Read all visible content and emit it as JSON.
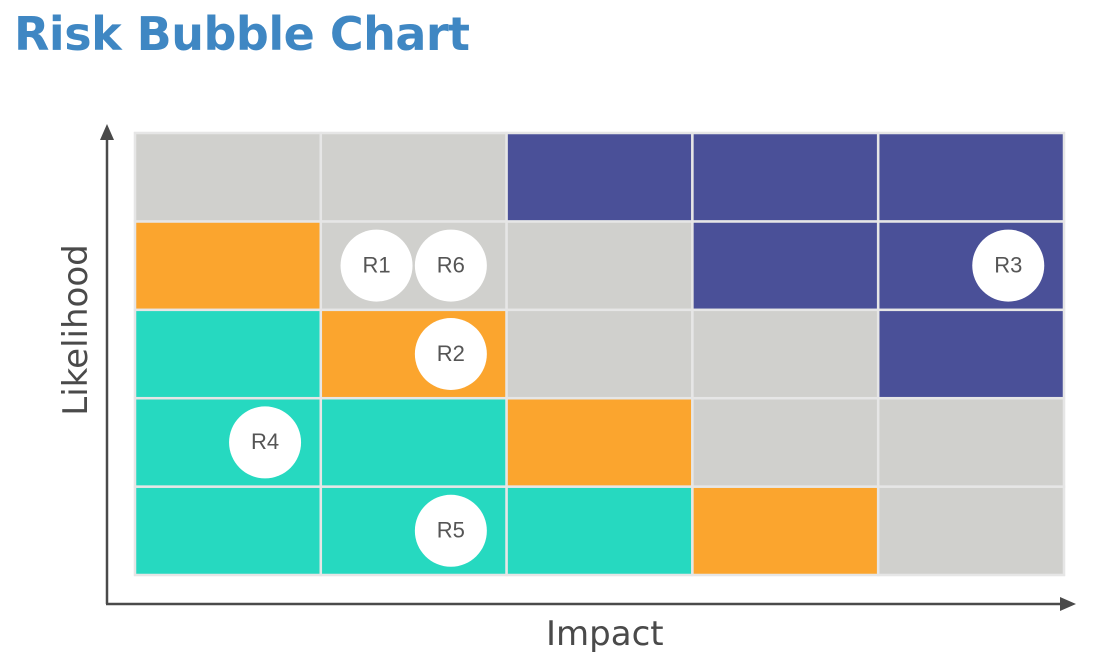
{
  "title": "Risk Bubble Chart",
  "colors": {
    "title": "#3f87c3",
    "low": "#26d9c0",
    "medium": "#fba52e",
    "neutral": "#d0d0cd",
    "high": "#4a5098",
    "bubble": "#ffffff",
    "bubble_text": "#555555",
    "axis": "#4a4a4a"
  },
  "chart_data": {
    "type": "heatmap",
    "title": "Risk Bubble Chart",
    "xlabel": "Impact",
    "ylabel": "Likelihood",
    "grid_size": [
      5,
      5
    ],
    "xlim": [
      0,
      5
    ],
    "ylim": [
      0,
      5
    ],
    "cells_bottom_to_top": [
      [
        "low",
        "low",
        "low",
        "medium",
        "neutral"
      ],
      [
        "low",
        "low",
        "medium",
        "neutral",
        "neutral"
      ],
      [
        "low",
        "medium",
        "neutral",
        "neutral",
        "high"
      ],
      [
        "medium",
        "neutral",
        "neutral",
        "high",
        "high"
      ],
      [
        "neutral",
        "neutral",
        "high",
        "high",
        "high"
      ]
    ],
    "series": [
      {
        "values": [
          {
            "label": "R1",
            "impact": 1.3,
            "likelihood": 3.5
          },
          {
            "label": "R6",
            "impact": 1.7,
            "likelihood": 3.5
          },
          {
            "label": "R3",
            "impact": 4.7,
            "likelihood": 3.5
          },
          {
            "label": "R2",
            "impact": 1.7,
            "likelihood": 2.5
          },
          {
            "label": "R4",
            "impact": 0.7,
            "likelihood": 1.5
          },
          {
            "label": "R5",
            "impact": 1.7,
            "likelihood": 0.5
          }
        ]
      }
    ]
  }
}
